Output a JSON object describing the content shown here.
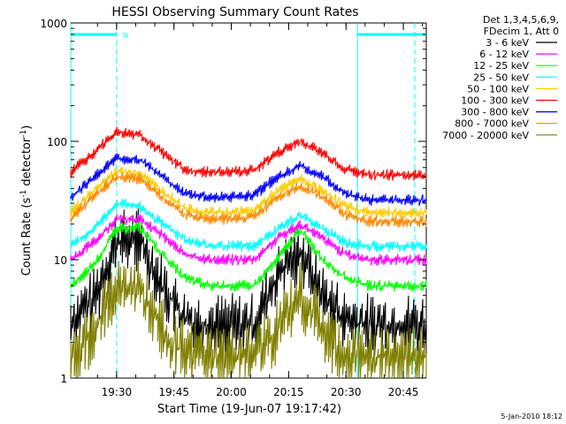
{
  "chart_data": {
    "type": "line",
    "title": "HESSI Observing Summary Count Rates",
    "xlabel": "Start Time (19-Jun-07 19:17:42)",
    "ylabel_prefix": "Count Rate (s",
    "ylabel_sup": "-1",
    "ylabel_mid": " detector",
    "ylabel_sup2": "-1",
    "ylabel_suffix": ")",
    "y_scale": "log",
    "ylim": [
      1,
      1000
    ],
    "xlim_minutes": [
      19.3,
      20.85
    ],
    "y_ticks": [
      {
        "value": 1,
        "label": "1"
      },
      {
        "value": 10,
        "label": "10"
      },
      {
        "value": 100,
        "label": "100"
      },
      {
        "value": 1000,
        "label": "1000"
      }
    ],
    "x_ticks": [
      {
        "value": 19.5,
        "label": "19:30"
      },
      {
        "value": 19.75,
        "label": "19:45"
      },
      {
        "value": 20.0,
        "label": "20:00"
      },
      {
        "value": 20.25,
        "label": "20:15"
      },
      {
        "value": 20.5,
        "label": "20:30"
      },
      {
        "value": 20.75,
        "label": "20:45"
      }
    ],
    "legend_header": [
      "Det 1,3,4,5,6,9,",
      "FDecim 1, Att 0"
    ],
    "legend_position": "top-right outside",
    "series": [
      {
        "name": "3 - 6 keV",
        "color": "#000000",
        "x": [
          19.3,
          19.4,
          19.5,
          19.6,
          19.7,
          19.8,
          19.9,
          20.0,
          20.1,
          20.2,
          20.3,
          20.4,
          20.5,
          20.6,
          20.7,
          20.8,
          20.85
        ],
        "y": [
          3,
          4.5,
          14,
          15,
          6,
          3,
          2.8,
          2.8,
          2.8,
          7,
          12,
          5,
          3,
          2.8,
          2.8,
          2.8,
          2.8
        ]
      },
      {
        "name": "6 - 12 keV",
        "color": "#ff00ff",
        "x": [
          19.3,
          19.4,
          19.5,
          19.6,
          19.7,
          19.8,
          19.9,
          20.0,
          20.1,
          20.2,
          20.3,
          20.4,
          20.5,
          20.6,
          20.7,
          20.8,
          20.85
        ],
        "y": [
          10,
          14,
          22,
          22,
          16,
          11,
          10,
          10,
          10,
          15,
          20,
          15,
          11,
          10,
          10,
          10,
          10
        ]
      },
      {
        "name": "12 - 25 keV",
        "color": "#00ff00",
        "x": [
          19.3,
          19.4,
          19.5,
          19.6,
          19.7,
          19.8,
          19.9,
          20.0,
          20.1,
          20.2,
          20.3,
          20.4,
          20.5,
          20.6,
          20.7,
          20.8,
          20.85
        ],
        "y": [
          6,
          9,
          18,
          19,
          11,
          7,
          6,
          6,
          6,
          10,
          18,
          10,
          7,
          6,
          6,
          6,
          6
        ]
      },
      {
        "name": "25 - 50 keV",
        "color": "#00ffff",
        "x": [
          19.3,
          19.4,
          19.5,
          19.6,
          19.7,
          19.8,
          19.9,
          20.0,
          20.1,
          20.2,
          20.3,
          20.4,
          20.5,
          20.6,
          20.7,
          20.8,
          20.85
        ],
        "y": [
          13,
          18,
          30,
          28,
          20,
          15,
          13,
          13,
          13,
          18,
          24,
          18,
          14,
          13,
          13,
          13,
          13
        ]
      },
      {
        "name": "50 - 100 keV",
        "color": "#ffcc00",
        "x": [
          19.3,
          19.4,
          19.5,
          19.6,
          19.7,
          19.8,
          19.9,
          20.0,
          20.1,
          20.2,
          20.3,
          20.4,
          20.5,
          20.6,
          20.7,
          20.8,
          20.85
        ],
        "y": [
          25,
          38,
          56,
          54,
          38,
          27,
          25,
          25,
          26,
          38,
          48,
          38,
          28,
          25,
          25,
          25,
          25
        ]
      },
      {
        "name": "100 - 300 keV",
        "color": "#ff0000",
        "x": [
          19.3,
          19.4,
          19.5,
          19.6,
          19.7,
          19.8,
          19.9,
          20.0,
          20.1,
          20.2,
          20.3,
          20.4,
          20.5,
          20.6,
          20.7,
          20.8,
          20.85
        ],
        "y": [
          55,
          80,
          120,
          115,
          80,
          57,
          55,
          55,
          57,
          80,
          100,
          80,
          58,
          52,
          52,
          52,
          52
        ]
      },
      {
        "name": "300 - 800 keV",
        "color": "#0000ff",
        "x": [
          19.3,
          19.4,
          19.5,
          19.6,
          19.7,
          19.8,
          19.9,
          20.0,
          20.1,
          20.2,
          20.3,
          20.4,
          20.5,
          20.6,
          20.7,
          20.8,
          20.85
        ],
        "y": [
          33,
          50,
          72,
          70,
          50,
          36,
          34,
          34,
          35,
          50,
          62,
          50,
          36,
          32,
          32,
          32,
          32
        ]
      },
      {
        "name": "800 - 7000 keV",
        "color": "#ff8800",
        "x": [
          19.3,
          19.4,
          19.5,
          19.6,
          19.7,
          19.8,
          19.9,
          20.0,
          20.1,
          20.2,
          20.3,
          20.4,
          20.5,
          20.6,
          20.7,
          20.8,
          20.85
        ],
        "y": [
          22,
          34,
          50,
          48,
          34,
          24,
          22,
          22,
          23,
          34,
          42,
          34,
          24,
          21,
          21,
          21,
          21
        ]
      },
      {
        "name": "7000 - 20000 keV",
        "color": "#808000",
        "x": [
          19.3,
          19.4,
          19.5,
          19.6,
          19.7,
          19.8,
          19.9,
          20.0,
          20.1,
          20.2,
          20.3,
          20.4,
          20.5,
          20.6,
          20.7,
          20.8,
          20.85
        ],
        "y": [
          1.5,
          2.5,
          6,
          5.5,
          2.5,
          1.6,
          1.5,
          1.5,
          1.5,
          2.5,
          5,
          2.5,
          1.5,
          1.5,
          1.5,
          1.5,
          1.5
        ]
      }
    ],
    "annotations": {
      "flag_label": "N",
      "flag_color": "#00ffff",
      "flag_level": 800,
      "flag_segments": [
        [
          19.3,
          19.5
        ],
        [
          20.55,
          20.85
        ]
      ],
      "dashed_lines_x": [
        19.5,
        20.8
      ],
      "solid_lines_x": [
        19.3,
        20.55
      ]
    }
  },
  "footer": {
    "date": "5-Jan-2010 18:12"
  }
}
